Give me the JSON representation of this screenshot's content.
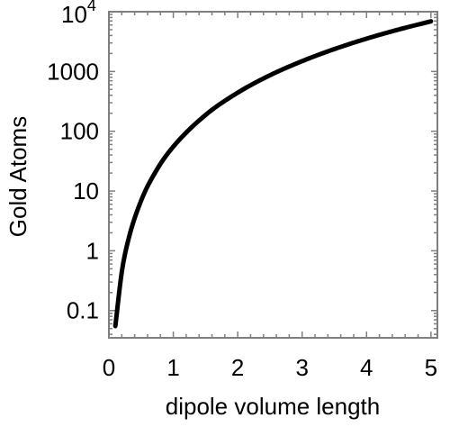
{
  "chart_data": {
    "type": "line",
    "title": "",
    "xlabel": "dipole volume length",
    "ylabel": "Gold Atoms",
    "xlim": [
      0,
      5.1
    ],
    "ylim": [
      0.035,
      10000
    ],
    "y_scale": "log",
    "grid": false,
    "x_ticks": [
      {
        "value": 0,
        "label": "0"
      },
      {
        "value": 1,
        "label": "1"
      },
      {
        "value": 2,
        "label": "2"
      },
      {
        "value": 3,
        "label": "3"
      },
      {
        "value": 4,
        "label": "4"
      },
      {
        "value": 5,
        "label": "5"
      }
    ],
    "y_ticks": [
      {
        "value": 0.1,
        "label": "0.1"
      },
      {
        "value": 1,
        "label": "1"
      },
      {
        "value": 10,
        "label": "10"
      },
      {
        "value": 100,
        "label": "100"
      },
      {
        "value": 1000,
        "label": "1000"
      },
      {
        "value": 10000,
        "base": "10",
        "exponent": "4"
      }
    ],
    "series": [
      {
        "color": "#000000",
        "x": [
          0.1,
          0.2,
          0.3,
          0.5,
          0.75,
          1,
          1.5,
          2,
          2.5,
          3,
          3.5,
          4,
          4.5,
          5
        ],
        "y": [
          0.055,
          0.44,
          1.5,
          6.9,
          23.3,
          55.3,
          187,
          442,
          864,
          1490,
          2370,
          3540,
          5040,
          6910
        ]
      }
    ]
  }
}
